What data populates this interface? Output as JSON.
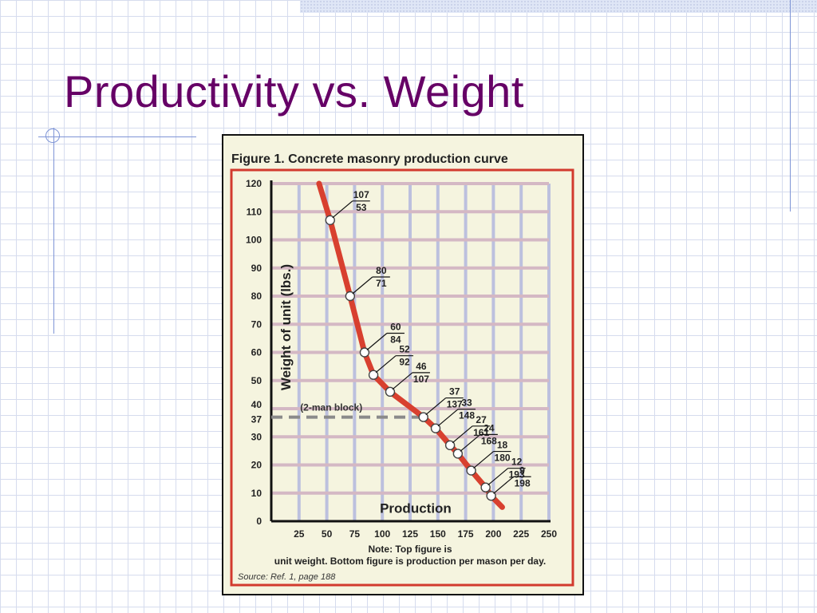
{
  "slide": {
    "title": "Productivity vs. Weight"
  },
  "figure": {
    "caption": "Figure 1. Concrete masonry production curve",
    "source": "Source: Ref. 1, page 188"
  },
  "chart_data": {
    "type": "line",
    "title": "Figure 1. Concrete masonry production curve",
    "xlabel": "Production",
    "ylabel": "Weight of unit (lbs.)",
    "xlim": [
      0,
      250
    ],
    "ylim": [
      0,
      120
    ],
    "x_ticks": [
      25,
      50,
      75,
      100,
      125,
      150,
      175,
      200,
      225,
      250
    ],
    "y_ticks": [
      0,
      10,
      20,
      30,
      37,
      40,
      50,
      60,
      70,
      80,
      90,
      100,
      110,
      120
    ],
    "grid": true,
    "line_color": "#d8402f",
    "curve": [
      {
        "x": 43,
        "y": 120
      },
      {
        "x": 53,
        "y": 107
      },
      {
        "x": 71,
        "y": 80
      },
      {
        "x": 84,
        "y": 60
      },
      {
        "x": 92,
        "y": 52
      },
      {
        "x": 107,
        "y": 46
      },
      {
        "x": 137,
        "y": 37
      },
      {
        "x": 148,
        "y": 33
      },
      {
        "x": 161,
        "y": 27
      },
      {
        "x": 168,
        "y": 24
      },
      {
        "x": 180,
        "y": 18
      },
      {
        "x": 193,
        "y": 12
      },
      {
        "x": 198,
        "y": 9
      },
      {
        "x": 208,
        "y": 5
      }
    ],
    "points": [
      {
        "weight": 107,
        "production": 53
      },
      {
        "weight": 80,
        "production": 71
      },
      {
        "weight": 60,
        "production": 84
      },
      {
        "weight": 52,
        "production": 92
      },
      {
        "weight": 46,
        "production": 107
      },
      {
        "weight": 37,
        "production": 137
      },
      {
        "weight": 33,
        "production": 148
      },
      {
        "weight": 27,
        "production": 161
      },
      {
        "weight": 24,
        "production": 168
      },
      {
        "weight": 18,
        "production": 180
      },
      {
        "weight": 12,
        "production": 193
      },
      {
        "weight": 9,
        "production": 198
      }
    ],
    "reference_line": {
      "y": 37,
      "label": "(2-man block)"
    },
    "note": "Note: Top figure is unit weight. Bottom figure is production per mason per day."
  }
}
